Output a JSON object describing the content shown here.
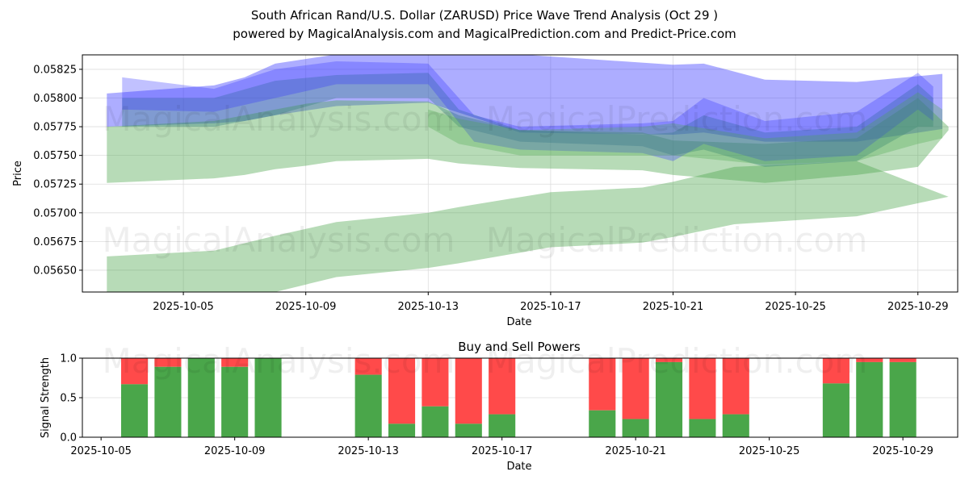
{
  "title_line1": "South African Rand/U.S. Dollar (ZARUSD) Price Wave Trend Analysis (Oct 29 )",
  "title_line2": "powered by MagicalAnalysis.com and MagicalPrediction.com and Predict-Price.com",
  "watermarks": [
    "MagicalAnalysis.com",
    "MagicalPrediction.com"
  ],
  "colors": {
    "blue": "#3333ff",
    "green": "#4aa64a",
    "buy": "#4aa64a",
    "sell": "#ff4a4a",
    "tealband": "#2f7a7a"
  },
  "chart_data": [
    {
      "type": "area",
      "title": "",
      "xlabel": "Date",
      "ylabel": "Price",
      "x_start": "2025-10-01",
      "xlim_days": [
        1.7,
        30.3
      ],
      "ylim": [
        0.05631,
        0.058376
      ],
      "yticks": [
        "0.05650",
        "0.05675",
        "0.05700",
        "0.05725",
        "0.05750",
        "0.05775",
        "0.05800",
        "0.05825"
      ],
      "ytick_values": [
        0.0565,
        0.05675,
        0.057,
        0.05725,
        0.0575,
        0.05775,
        0.058,
        0.05825
      ],
      "xticks": [
        "2025-10-05",
        "2025-10-09",
        "2025-10-13",
        "2025-10-17",
        "2025-10-21",
        "2025-10-25",
        "2025-10-29"
      ],
      "xtick_days": [
        5,
        9,
        13,
        17,
        21,
        25,
        29
      ],
      "grid": true,
      "bands": [
        {
          "name": "blue-wide",
          "color": "blue",
          "opacity": 0.4,
          "x": [
            2.5,
            6,
            7,
            8,
            10,
            13,
            16,
            21,
            22,
            24,
            27,
            29.8
          ],
          "upper": [
            0.05804,
            0.05811,
            0.05818,
            0.0583,
            0.05838,
            0.05838,
            0.05838,
            0.05829,
            0.0583,
            0.05816,
            0.05814,
            0.05821
          ],
          "lower": [
            0.05775,
            0.05778,
            0.0578,
            0.05785,
            0.05793,
            0.05796,
            0.0577,
            0.05768,
            0.0577,
            0.05762,
            0.05762,
            0.05773
          ]
        },
        {
          "name": "green-upper",
          "color": "green",
          "opacity": 0.4,
          "x": [
            2.5,
            6,
            7,
            8,
            9,
            10,
            13,
            14,
            16,
            20,
            21,
            24,
            27,
            29,
            30
          ],
          "upper": [
            0.05775,
            0.0578,
            0.05785,
            0.0579,
            0.05795,
            0.05798,
            0.05797,
            0.05785,
            0.05772,
            0.0577,
            0.05763,
            0.0576,
            0.05765,
            0.058,
            0.05775
          ],
          "lower": [
            0.05726,
            0.0573,
            0.05733,
            0.05738,
            0.05741,
            0.05745,
            0.05747,
            0.05743,
            0.05739,
            0.05737,
            0.05733,
            0.05726,
            0.05733,
            0.0574,
            0.05772
          ]
        },
        {
          "name": "green-lower",
          "color": "green",
          "opacity": 0.4,
          "x": [
            2.5,
            6,
            8,
            10,
            13,
            14,
            17,
            20,
            21,
            23,
            27,
            30
          ],
          "upper": [
            0.05662,
            0.05667,
            0.0568,
            0.05692,
            0.057,
            0.05705,
            0.05718,
            0.05722,
            0.05727,
            0.0574,
            0.05745,
            0.05714
          ],
          "lower": [
            0.0563,
            0.0563,
            0.05631,
            0.05644,
            0.05652,
            0.05656,
            0.0567,
            0.05674,
            0.05679,
            0.0569,
            0.05697,
            0.05714
          ]
        },
        {
          "name": "teal-mid",
          "color": "tealband",
          "opacity": 0.35,
          "x": [
            3,
            6,
            8,
            10,
            13,
            14,
            16,
            20,
            21,
            22,
            24,
            27,
            29,
            29.5
          ],
          "upper": [
            0.058,
            0.058,
            0.05815,
            0.0582,
            0.05822,
            0.0579,
            0.05772,
            0.05768,
            0.0577,
            0.05785,
            0.0577,
            0.05775,
            0.05812,
            0.058
          ],
          "lower": [
            0.05775,
            0.05775,
            0.05785,
            0.058,
            0.058,
            0.05775,
            0.05762,
            0.05758,
            0.0575,
            0.05755,
            0.0574,
            0.05745,
            0.05775,
            0.05775
          ]
        },
        {
          "name": "blue-mid",
          "color": "blue",
          "opacity": 0.3,
          "x": [
            3,
            6,
            8,
            10,
            13,
            14.5,
            16,
            20,
            21,
            22,
            24,
            27,
            29,
            29.5
          ],
          "upper": [
            0.05818,
            0.05808,
            0.05825,
            0.05832,
            0.0583,
            0.05785,
            0.05775,
            0.05778,
            0.0578,
            0.058,
            0.0578,
            0.05788,
            0.05822,
            0.0581
          ],
          "lower": [
            0.0579,
            0.05788,
            0.058,
            0.05812,
            0.05812,
            0.05762,
            0.05755,
            0.05752,
            0.05745,
            0.0576,
            0.05745,
            0.0575,
            0.0579,
            0.0578
          ]
        },
        {
          "name": "green-mid",
          "color": "green",
          "opacity": 0.3,
          "x": [
            13,
            14,
            16,
            20,
            21,
            24,
            27,
            29,
            29.8
          ],
          "upper": [
            0.0579,
            0.05782,
            0.05772,
            0.05775,
            0.05778,
            0.05765,
            0.0577,
            0.05805,
            0.0579
          ],
          "lower": [
            0.05775,
            0.0576,
            0.0575,
            0.0575,
            0.0575,
            0.05742,
            0.05745,
            0.0576,
            0.05765
          ]
        }
      ]
    },
    {
      "type": "bar",
      "title": "Buy and Sell Powers",
      "xlabel": "Date",
      "ylabel": "Signal Strength",
      "ylim": [
        0,
        1
      ],
      "yticks": [
        "0.0",
        "0.5",
        "1.0"
      ],
      "ytick_values": [
        0,
        0.5,
        1
      ],
      "xlim_days": [
        4.44,
        30.64
      ],
      "xticks": [
        "2025-10-05",
        "2025-10-09",
        "2025-10-13",
        "2025-10-17",
        "2025-10-21",
        "2025-10-25",
        "2025-10-29"
      ],
      "xtick_days": [
        5,
        9,
        13,
        17,
        21,
        25,
        29
      ],
      "days": [
        6,
        7,
        8,
        9,
        10,
        13,
        14,
        15,
        16,
        17,
        20,
        21,
        22,
        23,
        24,
        27,
        28,
        29
      ],
      "buy": [
        0.67,
        0.89,
        1.0,
        0.89,
        1.0,
        0.79,
        0.17,
        0.39,
        0.17,
        0.29,
        0.34,
        0.23,
        0.95,
        0.23,
        0.29,
        0.68,
        0.95,
        0.95
      ]
    }
  ]
}
